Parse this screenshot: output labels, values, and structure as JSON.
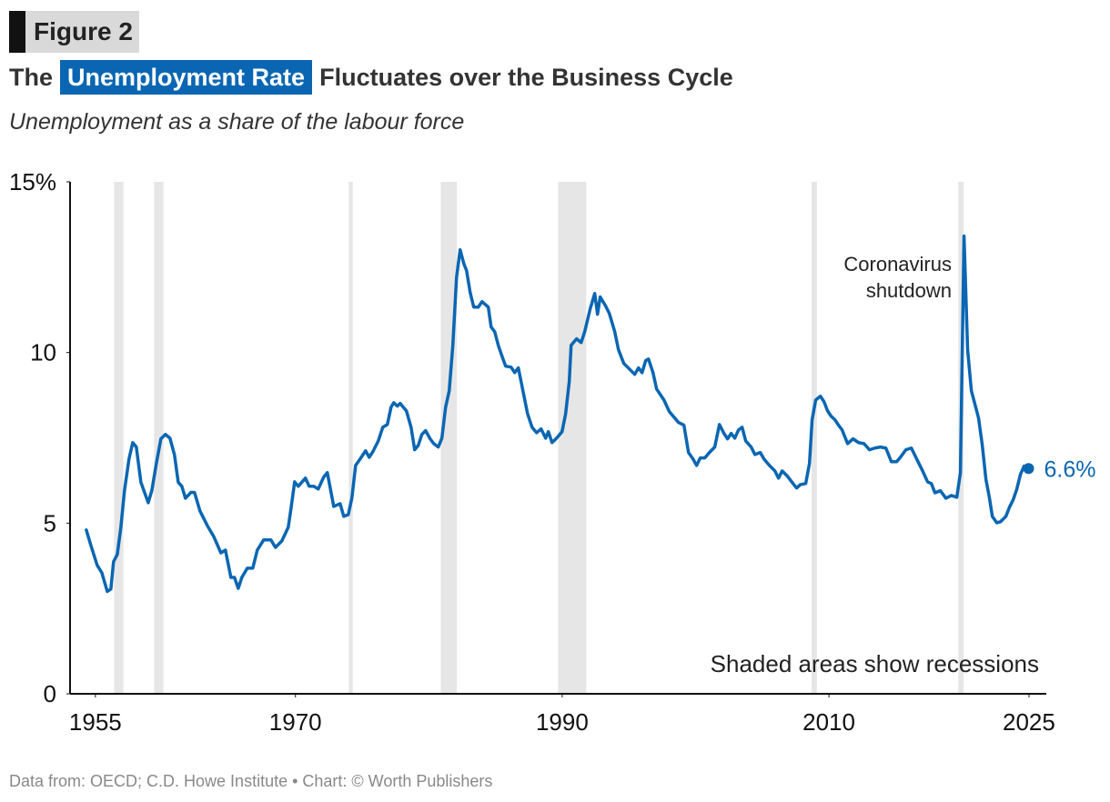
{
  "chart_data": {
    "type": "line",
    "figure_label": "Figure 2",
    "title_parts": [
      "The",
      "Unemployment Rate",
      "Fluctuates over the Business Cycle"
    ],
    "subtitle": "Unemployment as a share of the labour force",
    "source": "Data from: OECD; C.D. Howe Institute • Chart: © Worth Publishers",
    "recession_note": "Shaded areas show recessions",
    "annotation_lines": [
      "Coronavirus",
      "shutdown"
    ],
    "recessions": [
      [
        1956.4,
        1957.1
      ],
      [
        1959.4,
        1960.1
      ],
      [
        1974.0,
        1974.3
      ],
      [
        1980.9,
        1982.1
      ],
      [
        1989.7,
        1991.8
      ],
      [
        2008.7,
        2009.1
      ],
      [
        2019.7,
        2020.1
      ]
    ],
    "recession_color": "#e6e6e6",
    "xlim": [
      1953.1,
      2026.3
    ],
    "xticks": [
      1955,
      1970,
      1990,
      2010,
      2025
    ],
    "ylim": [
      0,
      15
    ],
    "yticks": [
      0,
      5,
      10,
      {
        "value": 15,
        "label": "15%"
      }
    ],
    "grid": false,
    "x": [
      1954.32,
      1954.66,
      1955.14,
      1955.48,
      1955.89,
      1956.16,
      1956.36,
      1956.64,
      1956.91,
      1957.18,
      1957.52,
      1957.8,
      1958.07,
      1958.41,
      1958.96,
      1959.23,
      1959.57,
      1959.91,
      1960.25,
      1960.59,
      1960.93,
      1961.21,
      1961.48,
      1961.75,
      1962.16,
      1962.43,
      1962.84,
      1963.39,
      1963.87,
      1964.41,
      1964.75,
      1965.16,
      1965.43,
      1965.71,
      1965.98,
      1966.39,
      1966.8,
      1967.14,
      1967.62,
      1968.16,
      1968.5,
      1968.98,
      1969.46,
      1969.66,
      1969.94,
      1970.21,
      1970.75,
      1971.03,
      1971.37,
      1971.71,
      1972.12,
      1972.39,
      1972.87,
      1973.35,
      1973.62,
      1973.96,
      1974.23,
      1974.51,
      1974.85,
      1975.26,
      1975.53,
      1975.8,
      1976.21,
      1976.55,
      1976.89,
      1977.17,
      1977.37,
      1977.64,
      1977.85,
      1978.32,
      1978.67,
      1978.94,
      1979.21,
      1979.48,
      1979.76,
      1980.1,
      1980.37,
      1980.71,
      1980.98,
      1981.26,
      1981.53,
      1981.8,
      1982.08,
      1982.35,
      1982.62,
      1982.83,
      1983.1,
      1983.37,
      1983.71,
      1983.99,
      1984.46,
      1984.67,
      1984.94,
      1985.21,
      1985.49,
      1985.76,
      1986.17,
      1986.44,
      1986.71,
      1986.99,
      1987.4,
      1987.74,
      1988.08,
      1988.42,
      1988.76,
      1988.96,
      1989.24,
      1989.58,
      1989.99,
      1990.26,
      1990.53,
      1990.67,
      1991.08,
      1991.42,
      1991.69,
      1992.1,
      1992.44,
      1992.65,
      1992.85,
      1993.26,
      1993.53,
      1993.94,
      1994.22,
      1994.62,
      1995.03,
      1995.44,
      1995.72,
      1995.99,
      1996.26,
      1996.47,
      1996.81,
      1997.08,
      1997.63,
      1998.03,
      1998.44,
      1998.72,
      1999.13,
      1999.47,
      1999.81,
      2000.08,
      2000.35,
      2000.69,
      2001.04,
      2001.44,
      2001.79,
      2002.13,
      2002.4,
      2002.67,
      2002.94,
      2003.22,
      2003.49,
      2003.76,
      2004.17,
      2004.45,
      2004.85,
      2005.13,
      2005.54,
      2005.95,
      2006.22,
      2006.49,
      2006.9,
      2007.31,
      2007.58,
      2007.86,
      2008.26,
      2008.54,
      2008.74,
      2009.01,
      2009.36,
      2009.63,
      2009.9,
      2010.17,
      2010.45,
      2010.72,
      2010.99,
      2011.4,
      2011.81,
      2012.22,
      2012.63,
      2013.04,
      2013.45,
      2013.86,
      2014.27,
      2014.68,
      2015.08,
      2015.36,
      2015.77,
      2016.18,
      2016.58,
      2016.99,
      2017.4,
      2017.68,
      2017.95,
      2018.36,
      2018.77,
      2019.18,
      2019.59,
      2019.86,
      2020.13,
      2020.4,
      2020.68,
      2020.95,
      2021.22,
      2021.5,
      2021.77,
      2022.04,
      2022.25,
      2022.59,
      2022.86,
      2023.27,
      2023.54,
      2023.81,
      2024.09,
      2024.36,
      2024.63,
      2024.97
    ],
    "series": [
      {
        "name": "Unemployment rate",
        "color": "#0a66b2",
        "values": [
          4.8,
          4.35,
          3.76,
          3.55,
          3.0,
          3.07,
          3.87,
          4.08,
          4.88,
          5.95,
          6.88,
          7.36,
          7.23,
          6.2,
          5.6,
          5.95,
          6.75,
          7.47,
          7.6,
          7.49,
          7.0,
          6.2,
          6.08,
          5.73,
          5.9,
          5.9,
          5.36,
          4.93,
          4.61,
          4.13,
          4.21,
          3.41,
          3.41,
          3.09,
          3.41,
          3.68,
          3.68,
          4.21,
          4.51,
          4.51,
          4.29,
          4.48,
          4.88,
          5.41,
          6.21,
          6.08,
          6.32,
          6.08,
          6.08,
          6.0,
          6.35,
          6.48,
          5.49,
          5.57,
          5.2,
          5.25,
          5.73,
          6.69,
          6.88,
          7.12,
          6.93,
          7.09,
          7.41,
          7.81,
          7.89,
          8.4,
          8.53,
          8.43,
          8.51,
          8.29,
          7.81,
          7.15,
          7.28,
          7.6,
          7.71,
          7.47,
          7.33,
          7.23,
          7.49,
          8.4,
          8.88,
          10.21,
          12.21,
          13.01,
          12.61,
          12.4,
          11.76,
          11.33,
          11.33,
          11.49,
          11.33,
          10.75,
          10.61,
          10.21,
          9.89,
          9.6,
          9.57,
          9.41,
          9.55,
          9.01,
          8.21,
          7.81,
          7.65,
          7.76,
          7.49,
          7.68,
          7.36,
          7.49,
          7.68,
          8.21,
          9.15,
          10.21,
          10.4,
          10.29,
          10.61,
          11.28,
          11.73,
          11.12,
          11.63,
          11.36,
          11.15,
          10.61,
          10.08,
          9.68,
          9.52,
          9.36,
          9.55,
          9.41,
          9.76,
          9.81,
          9.41,
          8.93,
          8.61,
          8.27,
          8.08,
          7.95,
          7.87,
          7.07,
          6.88,
          6.69,
          6.91,
          6.91,
          7.07,
          7.23,
          7.89,
          7.63,
          7.47,
          7.63,
          7.49,
          7.73,
          7.81,
          7.41,
          7.23,
          7.01,
          7.07,
          6.88,
          6.69,
          6.53,
          6.32,
          6.53,
          6.37,
          6.16,
          6.03,
          6.13,
          6.16,
          6.75,
          8.03,
          8.61,
          8.72,
          8.56,
          8.29,
          8.13,
          8.03,
          7.87,
          7.73,
          7.33,
          7.47,
          7.36,
          7.33,
          7.15,
          7.2,
          7.23,
          7.2,
          6.8,
          6.8,
          6.93,
          7.15,
          7.2,
          6.88,
          6.56,
          6.21,
          6.16,
          5.89,
          5.95,
          5.73,
          5.81,
          5.76,
          6.48,
          13.41,
          10.08,
          8.88,
          8.48,
          8.08,
          7.28,
          6.29,
          5.73,
          5.2,
          5.01,
          5.04,
          5.2,
          5.47,
          5.68,
          6.0,
          6.43,
          6.67,
          6.6
        ]
      }
    ],
    "end_point": {
      "x": 2024.97,
      "value": 6.6,
      "label": "6.6%"
    }
  }
}
